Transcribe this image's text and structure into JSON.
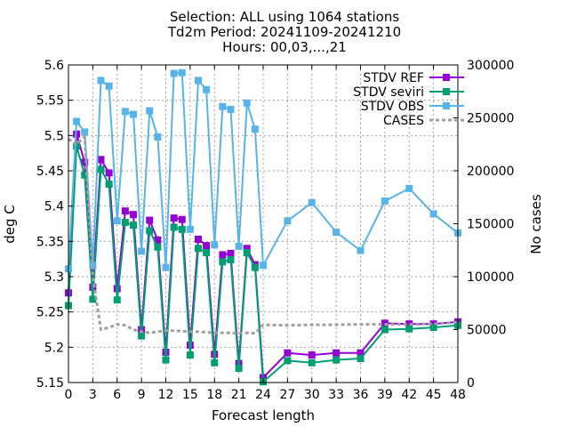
{
  "title_lines": [
    "Selection: ALL using  1064 stations",
    "Td2m   Period: 20241109-20241210",
    "Hours: 00,03,...,21"
  ],
  "chart_data": {
    "type": "line",
    "title": "Selection: ALL using  1064 stations",
    "xlabel": "Forecast length",
    "ylabel": "deg C",
    "y2label": "No cases",
    "x_ticks": [
      0,
      3,
      6,
      9,
      12,
      15,
      18,
      21,
      24,
      27,
      30,
      33,
      36,
      39,
      42,
      45,
      48
    ],
    "ylim": [
      5.15,
      5.6
    ],
    "y_ticks": [
      5.15,
      5.2,
      5.25,
      5.3,
      5.35,
      5.4,
      5.45,
      5.5,
      5.55,
      5.6
    ],
    "y2lim": [
      0,
      300000
    ],
    "y2_ticks": [
      0,
      50000,
      100000,
      150000,
      200000,
      250000,
      300000
    ],
    "grid": true,
    "legend_position": "top-right",
    "x": [
      0,
      1,
      2,
      3,
      4,
      5,
      6,
      7,
      8,
      9,
      10,
      11,
      12,
      13,
      14,
      15,
      16,
      17,
      18,
      19,
      20,
      21,
      22,
      23,
      24,
      27,
      30,
      33,
      36,
      39,
      42,
      45,
      48
    ],
    "series": [
      {
        "name": "STDV REF",
        "color": "#9400d3",
        "marker": "square",
        "axis": "y1",
        "values": [
          5.277,
          5.502,
          5.462,
          5.285,
          5.466,
          5.447,
          5.283,
          5.393,
          5.388,
          5.225,
          5.38,
          5.352,
          5.193,
          5.383,
          5.381,
          5.203,
          5.353,
          5.344,
          5.19,
          5.331,
          5.333,
          5.177,
          5.34,
          5.317,
          5.157,
          5.192,
          5.189,
          5.192,
          5.192,
          5.234,
          5.233,
          5.233,
          5.236
        ]
      },
      {
        "name": "STDV seviri",
        "color": "#009e73",
        "marker": "square",
        "axis": "y1",
        "values": [
          5.259,
          5.485,
          5.444,
          5.268,
          5.452,
          5.431,
          5.267,
          5.377,
          5.373,
          5.216,
          5.365,
          5.342,
          5.182,
          5.37,
          5.367,
          5.189,
          5.34,
          5.334,
          5.178,
          5.321,
          5.324,
          5.17,
          5.334,
          5.313,
          5.151,
          5.181,
          5.178,
          5.182,
          5.184,
          5.225,
          5.226,
          5.228,
          5.231
        ]
      },
      {
        "name": "STDV OBS",
        "color": "#56b4e9",
        "marker": "square",
        "axis": "y1",
        "values": [
          5.311,
          5.52,
          5.505,
          5.316,
          5.578,
          5.57,
          5.379,
          5.534,
          5.53,
          5.336,
          5.535,
          5.498,
          5.313,
          5.588,
          5.589,
          5.367,
          5.578,
          5.565,
          5.345,
          5.541,
          5.537,
          5.343,
          5.546,
          5.509,
          5.316,
          5.379,
          5.405,
          5.363,
          5.337,
          5.407,
          5.425,
          5.389,
          5.362
        ]
      },
      {
        "name": "CASES",
        "color": "#a0a0a0",
        "dash": true,
        "axis": "y2",
        "values": [
          230000,
          225000,
          232000,
          100000,
          50000,
          52000,
          55000,
          54000,
          50000,
          48000,
          47000,
          48000,
          49000,
          49000,
          48500,
          48000,
          48000,
          47500,
          47000,
          47000,
          47000,
          46500,
          47000,
          46500,
          54500,
          54000,
          54500,
          54500,
          55000,
          55000,
          55000,
          55500,
          57000
        ]
      }
    ]
  }
}
